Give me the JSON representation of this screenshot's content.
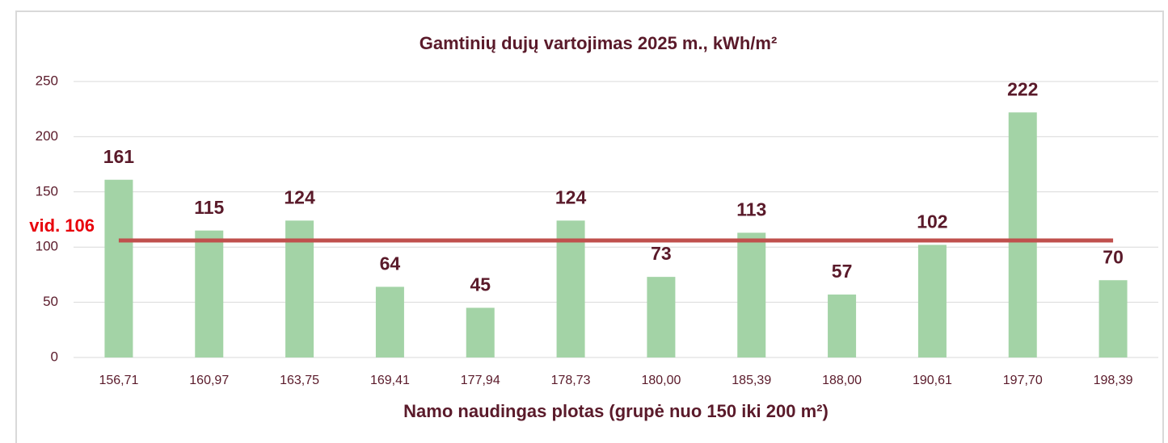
{
  "chart_data": {
    "type": "bar",
    "title": "Gamtinių dujų vartojimas 2025 m., kWh/m²",
    "x_label": "Namo naudingas plotas (grupė nuo 150 iki 200 m²)",
    "categories": [
      "156,71",
      "160,97",
      "163,75",
      "169,41",
      "177,94",
      "178,73",
      "180,00",
      "185,39",
      "188,00",
      "190,61",
      "197,70",
      "198,39"
    ],
    "values": [
      161,
      115,
      124,
      64,
      45,
      124,
      73,
      113,
      57,
      102,
      222,
      70
    ],
    "color": "#a3d3a6",
    "ylim": [
      0,
      250
    ],
    "yticks": [
      0,
      50,
      100,
      150,
      200,
      250
    ],
    "grid": true,
    "average": {
      "label": "vid. 106",
      "value": 106,
      "color": "#c0504d"
    }
  }
}
